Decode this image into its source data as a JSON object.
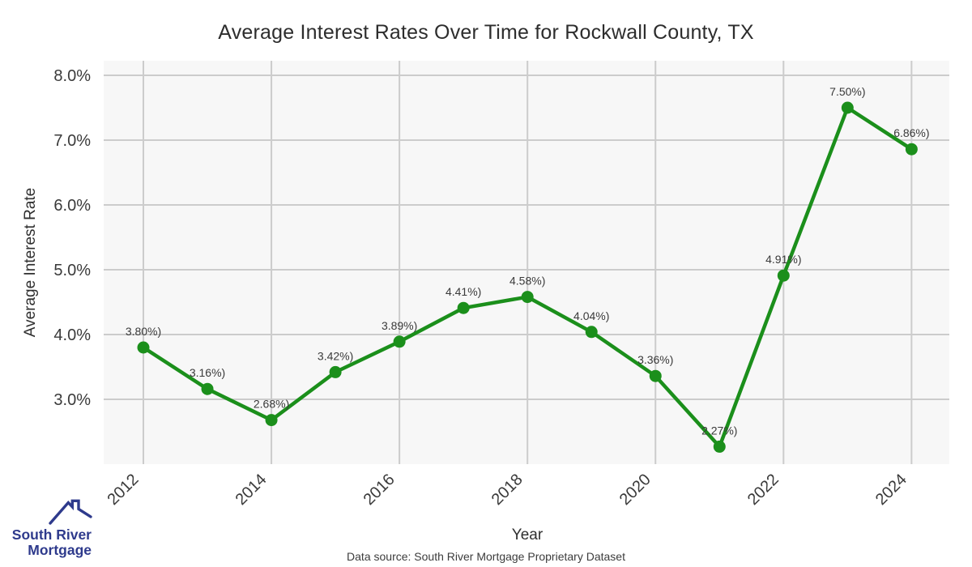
{
  "chart_data": {
    "type": "line",
    "title": "Average Interest Rates Over Time for Rockwall County, TX",
    "xlabel": "Year",
    "ylabel": "Average Interest Rate",
    "x": [
      2012,
      2013,
      2014,
      2015,
      2016,
      2017,
      2018,
      2019,
      2020,
      2021,
      2022,
      2023,
      2024
    ],
    "values": [
      3.8,
      3.16,
      2.68,
      3.42,
      3.89,
      4.41,
      4.58,
      4.04,
      3.36,
      2.27,
      4.91,
      7.5,
      6.86
    ],
    "point_labels": [
      "3.80%)",
      "3.16%)",
      "2.68%)",
      "3.42%)",
      "3.89%)",
      "4.41%)",
      "4.58%)",
      "4.04%)",
      "3.36%)",
      "2.27%)",
      "4.91%)",
      "7.50%)",
      "6.86%)"
    ],
    "x_ticks": [
      2012,
      2014,
      2016,
      2018,
      2020,
      2022,
      2024
    ],
    "y_ticks": [
      {
        "value": 3.0,
        "label": "3.0%"
      },
      {
        "value": 4.0,
        "label": "4.0%"
      },
      {
        "value": 5.0,
        "label": "5.0%"
      },
      {
        "value": 6.0,
        "label": "6.0%"
      },
      {
        "value": 7.0,
        "label": "7.0%"
      },
      {
        "value": 8.0,
        "label": "8.0%"
      }
    ],
    "xlim": [
      2011.38,
      2024.59
    ],
    "ylim": [
      2.0,
      8.225
    ],
    "grid": true,
    "legend": "none",
    "line_color": "#1b8f1b",
    "marker": "circle"
  },
  "footer": {
    "source": "Data source: South River Mortgage Proprietary Dataset"
  },
  "logo": {
    "line1": "South River",
    "line2": "Mortgage",
    "color": "#2e3a8c"
  },
  "colors": {
    "plot_bg": "#f7f7f7",
    "grid": "#cccccc",
    "tick_text": "#3a3a3a",
    "data_label_text": "#3a3a3a"
  }
}
